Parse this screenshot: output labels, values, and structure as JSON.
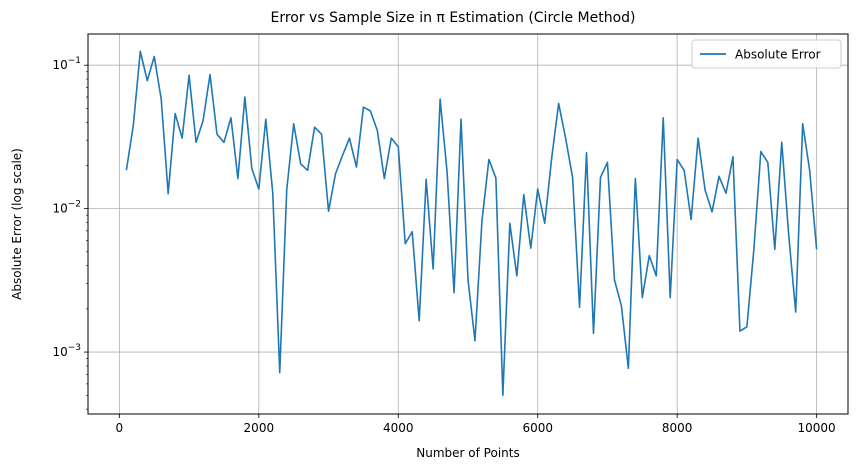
{
  "chart_data": {
    "type": "line",
    "title": "Error vs Sample Size in π Estimation (Circle Method)",
    "xlabel": "Number of Points",
    "ylabel": "Absolute Error (log scale)",
    "xlim": [
      -450,
      10450
    ],
    "ylim": [
      0.00037,
      0.165
    ],
    "yscale": "log",
    "grid": true,
    "legend_position": "top-right",
    "x_ticks": [
      {
        "value": 0,
        "label": "0"
      },
      {
        "value": 2000,
        "label": "2000"
      },
      {
        "value": 4000,
        "label": "4000"
      },
      {
        "value": 6000,
        "label": "6000"
      },
      {
        "value": 8000,
        "label": "8000"
      },
      {
        "value": 10000,
        "label": "10000"
      }
    ],
    "y_ticks": [
      {
        "value": 0.001,
        "base": "10",
        "exp": "−3"
      },
      {
        "value": 0.01,
        "base": "10",
        "exp": "−2"
      },
      {
        "value": 0.1,
        "base": "10",
        "exp": "−1"
      }
    ],
    "series": [
      {
        "name": "Absolute Error",
        "color": "#1f77b4",
        "x": [
          100,
          200,
          300,
          400,
          500,
          600,
          700,
          800,
          900,
          1000,
          1100,
          1200,
          1300,
          1400,
          1500,
          1600,
          1700,
          1800,
          1900,
          2000,
          2100,
          2200,
          2300,
          2400,
          2500,
          2600,
          2700,
          2800,
          2900,
          3000,
          3100,
          3200,
          3300,
          3400,
          3500,
          3600,
          3700,
          3800,
          3900,
          4000,
          4100,
          4200,
          4300,
          4400,
          4500,
          4600,
          4700,
          4800,
          4900,
          5000,
          5100,
          5200,
          5300,
          5400,
          5500,
          5600,
          5700,
          5800,
          5900,
          6000,
          6100,
          6200,
          6300,
          6400,
          6500,
          6600,
          6700,
          6800,
          6900,
          7000,
          7100,
          7200,
          7300,
          7400,
          7500,
          7600,
          7700,
          7800,
          7900,
          8000,
          8100,
          8200,
          8300,
          8400,
          8500,
          8600,
          8700,
          8800,
          8900,
          9000,
          9100,
          9200,
          9300,
          9400,
          9500,
          9600,
          9700,
          9800,
          9900,
          10000
        ],
        "y": [
          0.0185,
          0.038,
          0.125,
          0.078,
          0.115,
          0.058,
          0.0127,
          0.046,
          0.031,
          0.085,
          0.029,
          0.041,
          0.086,
          0.033,
          0.029,
          0.043,
          0.0162,
          0.06,
          0.019,
          0.0137,
          0.042,
          0.0128,
          0.00072,
          0.0135,
          0.039,
          0.0205,
          0.0185,
          0.037,
          0.033,
          0.0096,
          0.0175,
          0.0235,
          0.031,
          0.0195,
          0.051,
          0.048,
          0.035,
          0.0162,
          0.031,
          0.027,
          0.0057,
          0.0069,
          0.00165,
          0.016,
          0.0038,
          0.058,
          0.018,
          0.0026,
          0.042,
          0.0032,
          0.0012,
          0.0082,
          0.022,
          0.0163,
          0.0005,
          0.0079,
          0.0034,
          0.0125,
          0.0053,
          0.0137,
          0.0079,
          0.0225,
          0.054,
          0.031,
          0.0165,
          0.00205,
          0.0245,
          0.00135,
          0.0165,
          0.021,
          0.0032,
          0.0021,
          0.00077,
          0.0162,
          0.0024,
          0.0047,
          0.0034,
          0.043,
          0.0024,
          0.022,
          0.0185,
          0.0084,
          0.031,
          0.0135,
          0.0095,
          0.0168,
          0.0128,
          0.023,
          0.0014,
          0.0015,
          0.0052,
          0.025,
          0.021,
          0.0052,
          0.029,
          0.0065,
          0.0019,
          0.039,
          0.0185,
          0.0052
        ]
      }
    ]
  }
}
